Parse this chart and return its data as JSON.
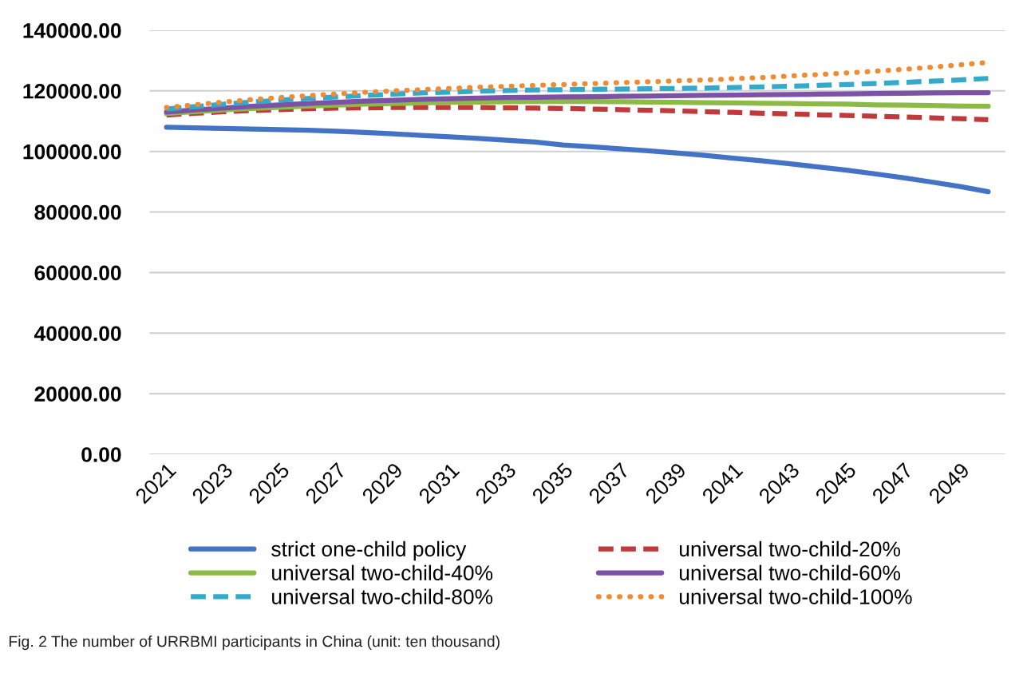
{
  "chart_data": {
    "type": "line",
    "categories": [
      "2021",
      null,
      "2023",
      null,
      "2025",
      null,
      "2027",
      null,
      "2029",
      null,
      "2031",
      null,
      "2033",
      null,
      "2035",
      null,
      "2037",
      null,
      "2039",
      null,
      "2041",
      null,
      "2043",
      null,
      "2045",
      null,
      "2047",
      null,
      "2049",
      null
    ],
    "series": [
      {
        "name": "strict one-child policy",
        "color": "#4472c4",
        "line_style": "solid",
        "values": [
          108000,
          107800,
          107600,
          107400,
          107200,
          107000,
          106700,
          106300,
          105800,
          105300,
          104800,
          104300,
          103700,
          103100,
          102100,
          101500,
          100900,
          100200,
          99500,
          98700,
          97800,
          96900,
          95900,
          94900,
          93800,
          92600,
          91300,
          89900,
          88400,
          86700
        ]
      },
      {
        "name": "universal two-child-20%",
        "color": "#c0393b",
        "line_style": "dashed",
        "values": [
          112000,
          112600,
          113100,
          113500,
          113800,
          114100,
          114300,
          114400,
          114500,
          114500,
          114500,
          114500,
          114400,
          114300,
          114200,
          114000,
          113800,
          113600,
          113400,
          113100,
          112900,
          112600,
          112400,
          112100,
          111900,
          111600,
          111400,
          111100,
          110800,
          110500
        ]
      },
      {
        "name": "universal two-child-40%",
        "color": "#8cbb45",
        "line_style": "solid",
        "values": [
          112500,
          113100,
          113700,
          114200,
          114600,
          115000,
          115300,
          115600,
          115800,
          116000,
          116200,
          116300,
          116400,
          116500,
          116500,
          116500,
          116400,
          116300,
          116200,
          116100,
          116000,
          115900,
          115800,
          115700,
          115600,
          115400,
          115300,
          115200,
          115000,
          114900
        ]
      },
      {
        "name": "universal two-child-60%",
        "color": "#7b52a6",
        "line_style": "solid",
        "values": [
          113000,
          113700,
          114300,
          114900,
          115400,
          115800,
          116200,
          116600,
          116900,
          117200,
          117400,
          117600,
          117800,
          117900,
          118000,
          118100,
          118200,
          118300,
          118400,
          118500,
          118600,
          118700,
          118800,
          118900,
          119000,
          119100,
          119200,
          119300,
          119400,
          119400
        ]
      },
      {
        "name": "universal two-child-80%",
        "color": "#33aacc",
        "line_style": "dashed",
        "values": [
          114000,
          114800,
          115600,
          116300,
          116900,
          117500,
          118000,
          118500,
          118900,
          119300,
          119600,
          119900,
          120100,
          120300,
          120400,
          120500,
          120600,
          120700,
          120800,
          120900,
          121100,
          121300,
          121500,
          121800,
          122100,
          122400,
          122800,
          123200,
          123600,
          124100
        ]
      },
      {
        "name": "universal two-child-100%",
        "color": "#f28a30",
        "line_style": "dotted",
        "values": [
          114500,
          115400,
          116300,
          117100,
          117800,
          118400,
          119000,
          119500,
          120000,
          120400,
          120800,
          121200,
          121500,
          121800,
          122100,
          122400,
          122700,
          123000,
          123300,
          123600,
          124000,
          124400,
          124900,
          125400,
          125900,
          126500,
          127100,
          127800,
          128600,
          129400
        ]
      }
    ],
    "ylim": [
      0,
      140000
    ],
    "yticks": [
      {
        "value": 0,
        "label": "0.00"
      },
      {
        "value": 20000,
        "label": "20000.00"
      },
      {
        "value": 40000,
        "label": "40000.00"
      },
      {
        "value": 60000,
        "label": "60000.00"
      },
      {
        "value": 80000,
        "label": "80000.00"
      },
      {
        "value": 100000,
        "label": "100000.00"
      },
      {
        "value": 120000,
        "label": "120000.00"
      },
      {
        "value": 140000,
        "label": "140000.00"
      }
    ],
    "grid": "y",
    "legend": "bottom",
    "marker": "none",
    "annotations": [
      "Fig. 2 The number of URRBMI participants in China (unit: ten thousand)"
    ]
  }
}
